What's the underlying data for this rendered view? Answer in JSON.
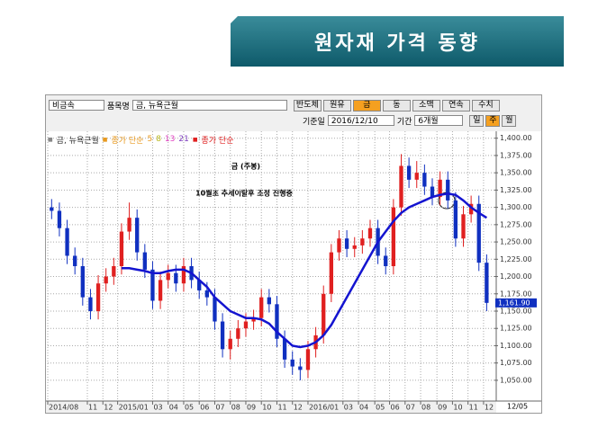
{
  "banner": {
    "title": "원자재 가격 동향"
  },
  "toolbar": {
    "category": "비금속",
    "item_label": "품목명",
    "item": "금, 뉴욕근월",
    "buttons": [
      "반도체",
      "원유",
      "금",
      "동",
      "소맥",
      "연속",
      "수치"
    ],
    "date_label": "기준일",
    "date": "2016/12/10",
    "period_label": "기간",
    "period": "6개월",
    "interval_buttons": [
      "일",
      "주",
      "월"
    ]
  },
  "chart_data": {
    "type": "candlestick",
    "name": "금, 뉴욕근월",
    "annotations": [
      "금 (주봉)",
      "10월초 추세이탈후 조정 진행중"
    ],
    "legend": [
      {
        "name": "종가 단순",
        "color": "#e89a20"
      },
      {
        "name": "5",
        "color": "#e89a20"
      },
      {
        "name": "8",
        "color": "#b8b820"
      },
      {
        "name": "13",
        "color": "#e040c0"
      },
      {
        "name": "21",
        "color": "#8040c0"
      }
    ],
    "categories": [
      null,
      null,
      null,
      null,
      null,
      null,
      null,
      null,
      null,
      null,
      null,
      null,
      null,
      null,
      null,
      null,
      null,
      null,
      null,
      null,
      null,
      null,
      null,
      null,
      null,
      null,
      null,
      null,
      null,
      null,
      null,
      null,
      null,
      null,
      null,
      null,
      null,
      null,
      null,
      null,
      null,
      null,
      null,
      null,
      null,
      null,
      null,
      null,
      null,
      null,
      null,
      null,
      null,
      null,
      null,
      null,
      null
    ],
    "open": [
      1300,
      1295,
      1270,
      1230,
      1215,
      1170,
      1150,
      1190,
      1200,
      1215,
      1265,
      1285,
      1235,
      1210,
      1165,
      1195,
      1205,
      1190,
      1215,
      1195,
      1180,
      1170,
      1135,
      1095,
      1110,
      1125,
      1135,
      1140,
      1170,
      1160,
      1110,
      1080,
      1070,
      1065,
      1095,
      1115,
      1175,
      1235,
      1255,
      1240,
      1245,
      1255,
      1270,
      1230,
      1215,
      1300,
      1360,
      1340,
      1350,
      1330,
      1315,
      1340,
      1310,
      1255,
      1290,
      1305,
      1220
    ],
    "high": [
      1312,
      1307,
      1282,
      1242,
      1227,
      1182,
      1202,
      1212,
      1227,
      1277,
      1307,
      1297,
      1247,
      1222,
      1207,
      1217,
      1217,
      1227,
      1227,
      1207,
      1192,
      1182,
      1147,
      1122,
      1137,
      1147,
      1152,
      1182,
      1182,
      1172,
      1122,
      1092,
      1082,
      1107,
      1127,
      1187,
      1247,
      1267,
      1267,
      1257,
      1267,
      1282,
      1282,
      1242,
      1312,
      1377,
      1372,
      1367,
      1362,
      1342,
      1352,
      1352,
      1322,
      1302,
      1317,
      1317,
      1232
    ],
    "low": [
      1283,
      1258,
      1218,
      1203,
      1158,
      1138,
      1138,
      1178,
      1188,
      1203,
      1253,
      1223,
      1198,
      1153,
      1153,
      1183,
      1178,
      1178,
      1183,
      1168,
      1158,
      1123,
      1083,
      1080,
      1098,
      1113,
      1123,
      1128,
      1148,
      1098,
      1068,
      1058,
      1050,
      1053,
      1083,
      1103,
      1163,
      1223,
      1228,
      1228,
      1233,
      1243,
      1218,
      1203,
      1203,
      1288,
      1328,
      1328,
      1318,
      1303,
      1303,
      1298,
      1243,
      1243,
      1278,
      1208,
      1150
    ],
    "close": [
      1295,
      1270,
      1230,
      1215,
      1170,
      1150,
      1190,
      1200,
      1215,
      1265,
      1285,
      1235,
      1210,
      1165,
      1195,
      1205,
      1190,
      1215,
      1195,
      1180,
      1170,
      1135,
      1095,
      1110,
      1125,
      1135,
      1140,
      1170,
      1160,
      1110,
      1080,
      1070,
      1065,
      1095,
      1115,
      1175,
      1235,
      1255,
      1240,
      1245,
      1255,
      1270,
      1230,
      1215,
      1300,
      1360,
      1340,
      1350,
      1330,
      1315,
      1340,
      1310,
      1255,
      1290,
      1305,
      1220,
      1161.9
    ],
    "up_color": "#e02020",
    "down_color": "#1030c0",
    "series": [
      {
        "name": "종가 단순",
        "color": "#1414d0",
        "values": [
          null,
          null,
          null,
          null,
          null,
          null,
          null,
          null,
          null,
          1212,
          1212,
          1210,
          1208,
          1205,
          1205,
          1208,
          1210,
          1210,
          1205,
          1195,
          1185,
          1170,
          1160,
          1150,
          1145,
          1140,
          1140,
          1138,
          1132,
          1120,
          1110,
          1100,
          1098,
          1100,
          1105,
          1115,
          1130,
          1150,
          1170,
          1190,
          1210,
          1230,
          1250,
          1265,
          1280,
          1292,
          1300,
          1305,
          1310,
          1315,
          1318,
          1320,
          1318,
          1310,
          1300,
          1292,
          1285
        ]
      }
    ],
    "price_marker": {
      "value": 1161.9,
      "label": "1,161.90"
    },
    "xlim": [
      -0.5,
      57
    ],
    "xticks": [
      {
        "value": -0.5,
        "label": "2014/08"
      },
      {
        "value": 4.6,
        "label": "11"
      },
      {
        "value": 6.6,
        "label": "12"
      },
      {
        "value": 8.5,
        "label": "2015/01"
      },
      {
        "value": 13,
        "label": "03"
      },
      {
        "value": 15,
        "label": "04"
      },
      {
        "value": 17,
        "label": "05"
      },
      {
        "value": 19,
        "label": "06"
      },
      {
        "value": 21,
        "label": "07"
      },
      {
        "value": 23,
        "label": "08"
      },
      {
        "value": 25,
        "label": "09"
      },
      {
        "value": 27,
        "label": "10"
      },
      {
        "value": 29,
        "label": "11"
      },
      {
        "value": 31,
        "label": "12"
      },
      {
        "value": 33,
        "label": "2016/01"
      },
      {
        "value": 37.5,
        "label": "03"
      },
      {
        "value": 39.5,
        "label": "04"
      },
      {
        "value": 41.6,
        "label": "05"
      },
      {
        "value": 43.5,
        "label": "06"
      },
      {
        "value": 45.5,
        "label": "07"
      },
      {
        "value": 47.5,
        "label": "08"
      },
      {
        "value": 49.6,
        "label": "09"
      },
      {
        "value": 51.6,
        "label": "10"
      },
      {
        "value": 53.6,
        "label": "11"
      },
      {
        "value": 55.6,
        "label": "12"
      }
    ],
    "x_end_label": "12/05",
    "ylim": [
      1020,
      1410
    ],
    "yticks": [
      {
        "value": 1050,
        "label": "1,050.00"
      },
      {
        "value": 1075,
        "label": "1,075.00"
      },
      {
        "value": 1100,
        "label": "1,100.00"
      },
      {
        "value": 1125,
        "label": "1,125.00"
      },
      {
        "value": 1150,
        "label": "1,150.00"
      },
      {
        "value": 1175,
        "label": "1,175.00"
      },
      {
        "value": 1200,
        "label": "1,200.00"
      },
      {
        "value": 1225,
        "label": "1,225.00"
      },
      {
        "value": 1250,
        "label": "1,250.00"
      },
      {
        "value": 1275,
        "label": "1,275.00"
      },
      {
        "value": 1300,
        "label": "1,300.00"
      },
      {
        "value": 1325,
        "label": "1,325.00"
      },
      {
        "value": 1350,
        "label": "1,350.00"
      },
      {
        "value": 1375,
        "label": "1,375.00"
      },
      {
        "value": 1400,
        "label": "1,400.00"
      }
    ],
    "grid": true
  }
}
